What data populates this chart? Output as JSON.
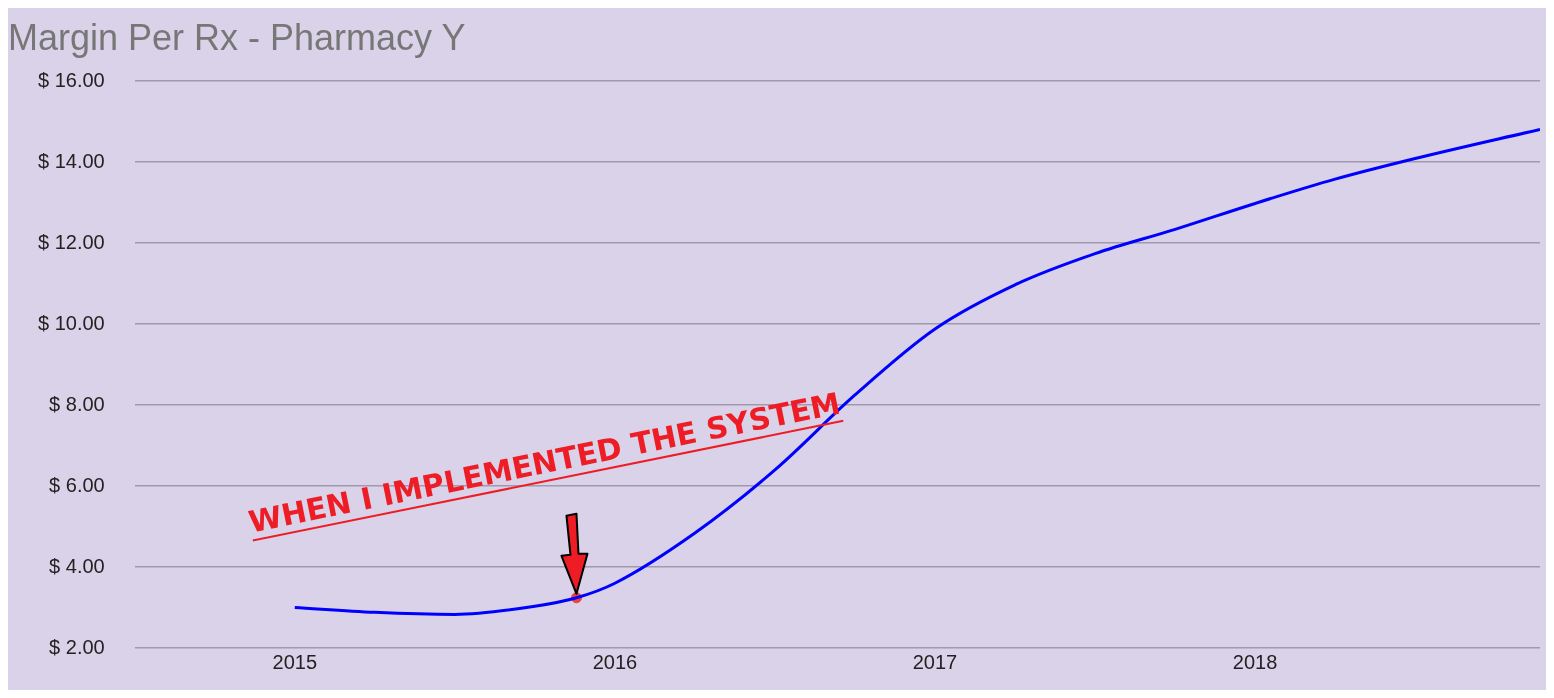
{
  "chart_data": {
    "type": "line",
    "title": "Margin Per Rx - Pharmacy Y",
    "x": [
      2015,
      2015.25,
      2015.5,
      2015.75,
      2015.88,
      2016,
      2016.25,
      2016.5,
      2016.75,
      2017,
      2017.25,
      2017.5,
      2017.75,
      2018,
      2018.25,
      2018.5,
      2018.89
    ],
    "series": [
      {
        "color": "#0000ff",
        "values": [
          3.0,
          2.88,
          2.83,
          3.03,
          3.24,
          3.6,
          4.84,
          6.4,
          8.25,
          9.88,
          10.97,
          11.74,
          12.34,
          12.98,
          13.58,
          14.09,
          14.81
        ]
      },
      {
        "type": "scatter",
        "color": "#f04040",
        "marker": "circle",
        "x": [
          2015.88
        ],
        "values": [
          3.24
        ]
      }
    ],
    "xlim": [
      2014.5,
      2018.89
    ],
    "xticks": [
      2015,
      2016,
      2017,
      2018
    ],
    "ylim": [
      2,
      16
    ],
    "yticks": [
      {
        "value": 2,
        "label": "$ 2.00"
      },
      {
        "value": 4,
        "label": "$ 4.00"
      },
      {
        "value": 6,
        "label": "$ 6.00"
      },
      {
        "value": 8,
        "label": "$ 8.00"
      },
      {
        "value": 10,
        "label": "$ 10.00"
      },
      {
        "value": 12,
        "label": "$ 12.00"
      },
      {
        "value": 14,
        "label": "$ 14.00"
      },
      {
        "value": 16,
        "label": "$ 16.00"
      }
    ],
    "grid": "y",
    "legend": false,
    "marker": "none",
    "line_style": "solid",
    "annotations": [
      {
        "text": "WHEN I IMPLEMENTED THE SYSTEM",
        "x": 2015.88,
        "y": 3.24
      }
    ]
  }
}
